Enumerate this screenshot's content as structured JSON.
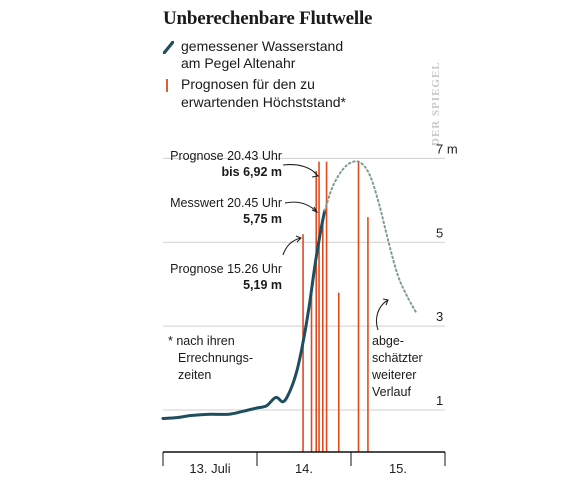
{
  "title": "Unberechenbare Flutwelle",
  "watermark": "DER SPIEGEL",
  "legend": {
    "measured": {
      "line1": "gemessener Wasserstand",
      "line2": "am Pegel Altenahr"
    },
    "forecast": {
      "line1": "Prognosen für den zu",
      "line2": "erwartenden Höchststand*"
    }
  },
  "annotations": {
    "forecast_2043": {
      "line1": "Prognose 20.43 Uhr",
      "line2": "bis 6,92 m"
    },
    "measured_2045": {
      "line1": "Messwert 20.45 Uhr",
      "line2": "5,75 m"
    },
    "forecast_1526": {
      "line1": "Prognose 15.26 Uhr",
      "line2": "5,19 m"
    }
  },
  "footnote": {
    "line1": "* nach ihren",
    "line2": "Errechnungs-",
    "line3": "zeiten"
  },
  "estimated_note": {
    "line1": "abge-",
    "line2": "schätzter",
    "line3": "weiterer",
    "line4": "Verlauf"
  },
  "colors": {
    "measured": "#1f4e5f",
    "forecast": "#e04a1f",
    "estimated": "#7f9a90",
    "grid": "#cfcfcf"
  },
  "chart_data": {
    "type": "line",
    "title": "Unberechenbare Flutwelle",
    "xlabel": "",
    "ylabel": "",
    "x_unit": "days from 13. Juli 00:00",
    "xlim": [
      0,
      3
    ],
    "ylim": [
      0,
      7.2
    ],
    "y_ticks": [
      1,
      3,
      5,
      7
    ],
    "y_tick_labels": [
      "1",
      "3",
      "5",
      "7 m"
    ],
    "x_tick_labels": [
      {
        "at": 0.5,
        "label": "13. Juli"
      },
      {
        "at": 1.5,
        "label": "14."
      },
      {
        "at": 2.5,
        "label": "15."
      }
    ],
    "grid": true,
    "series": [
      {
        "name": "gemessener Wasserstand am Pegel Altenahr",
        "style": "solid",
        "points": [
          [
            0,
            0.8
          ],
          [
            0.15,
            0.82
          ],
          [
            0.3,
            0.87
          ],
          [
            0.5,
            0.9
          ],
          [
            0.7,
            0.9
          ],
          [
            0.85,
            0.97
          ],
          [
            1.0,
            1.05
          ],
          [
            1.1,
            1.1
          ],
          [
            1.2,
            1.3
          ],
          [
            1.28,
            1.2
          ],
          [
            1.35,
            1.45
          ],
          [
            1.42,
            1.9
          ],
          [
            1.48,
            2.5
          ],
          [
            1.55,
            3.4
          ],
          [
            1.62,
            4.5
          ],
          [
            1.68,
            5.3
          ],
          [
            1.72,
            5.75
          ]
        ]
      },
      {
        "name": "abgeschätzter weiterer Verlauf",
        "style": "dotted",
        "points": [
          [
            1.72,
            5.75
          ],
          [
            1.8,
            6.3
          ],
          [
            1.9,
            6.7
          ],
          [
            2.0,
            6.9
          ],
          [
            2.1,
            6.9
          ],
          [
            2.2,
            6.6
          ],
          [
            2.3,
            5.9
          ],
          [
            2.4,
            5.0
          ],
          [
            2.5,
            4.2
          ],
          [
            2.6,
            3.7
          ],
          [
            2.7,
            3.3
          ]
        ]
      }
    ],
    "forecasts": [
      {
        "x": 1.49,
        "value": 5.19
      },
      {
        "x": 1.58,
        "value": 3.95
      },
      {
        "x": 1.63,
        "value": 6.7
      },
      {
        "x": 1.66,
        "value": 6.92
      },
      {
        "x": 1.7,
        "value": 5.5
      },
      {
        "x": 1.74,
        "value": 6.92
      },
      {
        "x": 1.87,
        "value": 3.8
      },
      {
        "x": 2.08,
        "value": 6.92
      },
      {
        "x": 2.18,
        "value": 5.6
      }
    ]
  }
}
